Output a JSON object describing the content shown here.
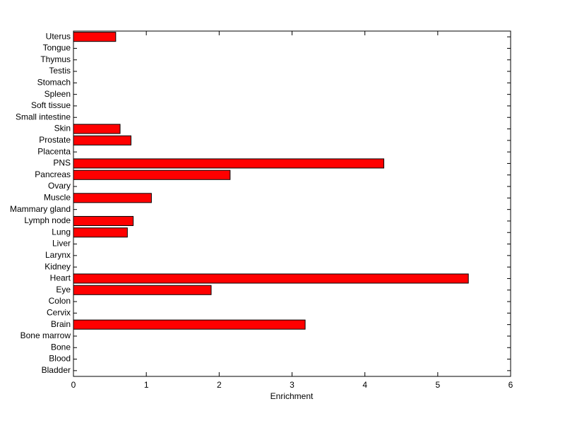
{
  "chart_data": {
    "type": "barh",
    "xlabel": "Enrichment",
    "categories": [
      "Bladder",
      "Blood",
      "Bone",
      "Bone marrow",
      "Brain",
      "Cervix",
      "Colon",
      "Eye",
      "Heart",
      "Kidney",
      "Larynx",
      "Liver",
      "Lung",
      "Lymph node",
      "Mammary gland",
      "Muscle",
      "Ovary",
      "Pancreas",
      "PNS",
      "Placenta",
      "Prostate",
      "Skin",
      "Small intestine",
      "Soft tissue",
      "Spleen",
      "Stomach",
      "Testis",
      "Thymus",
      "Tongue",
      "Uterus"
    ],
    "values": [
      0,
      0,
      0,
      0,
      3.18,
      0,
      0,
      1.89,
      5.42,
      0,
      0,
      0,
      0.74,
      0.82,
      0,
      1.07,
      0,
      2.15,
      4.26,
      0,
      0.79,
      0.64,
      0,
      0,
      0,
      0,
      0,
      0,
      0,
      0.58
    ],
    "color": "#ff0000",
    "xlim": [
      0,
      6
    ],
    "xticks": [
      0,
      1,
      2,
      3,
      4,
      5,
      6
    ]
  }
}
